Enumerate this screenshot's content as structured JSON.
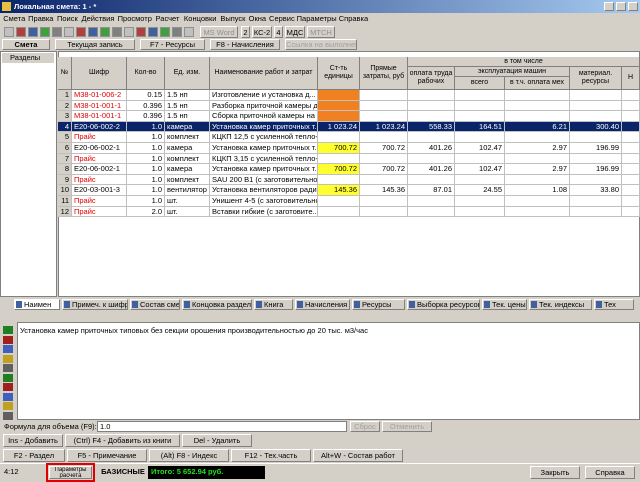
{
  "window": {
    "title": "Локальная смета: 1 - *"
  },
  "menu": [
    "Смета",
    "Правка",
    "Поиск",
    "Действия",
    "Просмотр",
    "Расчет",
    "Концовки",
    "Выпуск",
    "Окна",
    "Сервис",
    "Параметры",
    "Справка"
  ],
  "toolbar": [
    "MS Word",
    "2",
    "КС-2",
    "4",
    "МДС",
    "МТСН"
  ],
  "tabs": [
    "Смета",
    "Текущая запись",
    "F7 - Ресурсы",
    "F8 - Начисления",
    "Ссылка на выполнение"
  ],
  "sidebar": {
    "title": "Разделы"
  },
  "table": {
    "headers": [
      "№",
      "Шифр",
      "Кол-во",
      "Ед. изм.",
      "Наименование работ и затрат",
      "Ст-ть единицы",
      "Прямые затраты, руб",
      "в том числе",
      "оплата труда рабочих",
      "эксплуатация машин",
      "всего",
      "в т.ч. оплата мех",
      "материал. ресурсы",
      "Н"
    ],
    "rows": [
      [
        "1",
        "М38-01-006-2",
        "0.15",
        "1.5 нп",
        "Изготовление и установка д...",
        "",
        "",
        "",
        "",
        "",
        "",
        ""
      ],
      [
        "2",
        "М38-01-001-1",
        "0.396",
        "1.5 нп",
        "Разборка приточной камеры д...",
        "",
        "",
        "",
        "",
        "",
        "",
        ""
      ],
      [
        "3",
        "М38-01-001-1",
        "0.396",
        "1.5 нп",
        "Сборка приточной камеры на ...",
        "",
        "",
        "",
        "",
        "",
        "",
        ""
      ],
      [
        "4",
        "Е20-06-002-2",
        "1.0",
        "камера",
        "Установка камер приточных т...",
        "1 023.24",
        "1 023.24",
        "558.33",
        "164.51",
        "6.21",
        "300.40",
        ""
      ],
      [
        "5",
        "Прайс",
        "1.0",
        "комплект",
        "КЦКП 12,5 с усиленной тепло-...",
        "",
        "",
        "",
        "",
        "",
        "",
        ""
      ],
      [
        "6",
        "Е20-06-002-1",
        "1.0",
        "камера",
        "Установка камер приточных т...",
        "700.72",
        "700.72",
        "401.26",
        "102.47",
        "2.97",
        "196.99",
        ""
      ],
      [
        "7",
        "Прайс",
        "1.0",
        "комплект",
        "КЦКП 3,15 с усиленной тепло- и ...",
        "",
        "",
        "",
        "",
        "",
        "",
        ""
      ],
      [
        "8",
        "Е20-06-002-1",
        "1.0",
        "камера",
        "Установка камер приточных т...",
        "700.72",
        "700.72",
        "401.26",
        "102.47",
        "2.97",
        "196.99",
        ""
      ],
      [
        "9",
        "Прайс",
        "1.0",
        "комплект",
        "SAU 200 B1 (с заготовительно...",
        "",
        "",
        "",
        "",
        "",
        "",
        ""
      ],
      [
        "10",
        "Е20-03-001-3",
        "1.0",
        "вентилятор",
        "Установка вентиляторов ради...",
        "145.36",
        "145.36",
        "87.01",
        "24.55",
        "1.08",
        "33.80",
        ""
      ],
      [
        "11",
        "Прайс",
        "1.0",
        "шт.",
        "Унишент 4-5 (с заготовительно...",
        "",
        "",
        "",
        "",
        "",
        "",
        ""
      ],
      [
        "12",
        "Прайс",
        "2.0",
        "шт.",
        "Вставки гибкие (с заготовите...",
        "",
        "",
        "",
        "",
        "",
        "",
        ""
      ]
    ]
  },
  "bottom_tabs": [
    "Наимен",
    "Примеч. к шифру",
    "Состав сметы",
    "Концовка раздела",
    "Книга",
    "Начисления",
    "Ресурсы",
    "Выборка ресурсов",
    "Тек. цены",
    "Тек. индексы",
    "Тех"
  ],
  "description": "Установка камер приточных типовых без секции орошения производительностью до 20 тыс. м3/час",
  "formula": {
    "label": "Формула для объема (F9):",
    "value": "1.0",
    "reset": "Сброс",
    "cancel": "Отменить"
  },
  "buttons": [
    [
      "Ins - Добавить",
      "(Ctrl) F4 - Добавить из книги",
      "Del - Удалить"
    ],
    [
      "F2 - Раздел",
      "F5 - Примечание",
      "(Alt) F8 - Индекс",
      "F12 - Тех.часть",
      "Alt+W - Состав работ"
    ]
  ],
  "status": {
    "position": "4:12",
    "params": "Параметры расчета",
    "mode": "БАЗИСНЫЕ",
    "total": "Итого: 5 652.94 руб.",
    "close": "Закрыть",
    "help": "Справка"
  }
}
